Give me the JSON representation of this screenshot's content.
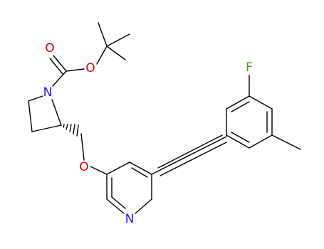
{
  "atoms": [
    {
      "label": "O"
    },
    {
      "label": "O"
    },
    {
      "label": "N"
    },
    {
      "label": "O"
    },
    {
      "label": "N"
    },
    {
      "label": "F"
    }
  ]
}
